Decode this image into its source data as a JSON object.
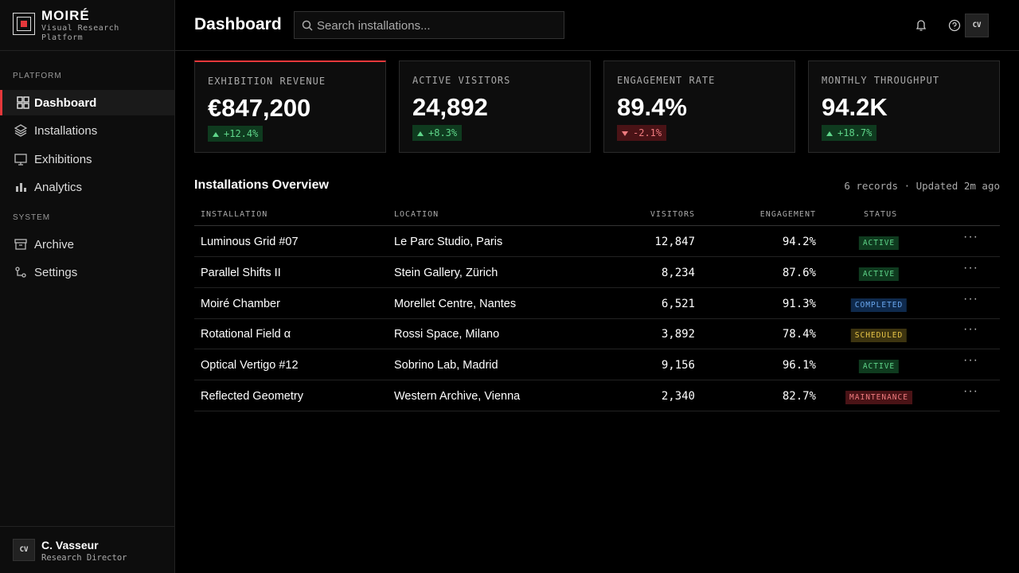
{
  "brand": {
    "name": "MOIRÉ",
    "tagline": "Visual Research Platform"
  },
  "nav": {
    "sections": [
      {
        "label": "PLATFORM",
        "items": [
          "Dashboard",
          "Installations",
          "Exhibitions",
          "Analytics"
        ]
      },
      {
        "label": "SYSTEM",
        "items": [
          "Archive",
          "Settings"
        ]
      }
    ]
  },
  "user": {
    "initials": "CV",
    "name": "C. Vasseur",
    "role": "Research Director"
  },
  "header": {
    "title": "Dashboard",
    "search_placeholder": "Search installations...",
    "avatar": "CV"
  },
  "kpis": [
    {
      "label": "EXHIBITION REVENUE",
      "value": "€847,200",
      "change": "+12.4%"
    },
    {
      "label": "ACTIVE VISITORS",
      "value": "24,892",
      "change": "+8.3%"
    },
    {
      "label": "ENGAGEMENT RATE",
      "value": "89.4%",
      "change": "-2.1%"
    },
    {
      "label": "MONTHLY THROUGHPUT",
      "value": "94.2K",
      "change": "+18.7%"
    }
  ],
  "table": {
    "title": "Installations Overview",
    "meta": "6 records · Updated 2m ago",
    "columns": [
      "INSTALLATION",
      "LOCATION",
      "VISITORS",
      "ENGAGEMENT",
      "STATUS"
    ],
    "rows": [
      [
        "Luminous Grid #07",
        "Le Parc Studio, Paris",
        "12,847",
        "94.2%",
        "ACTIVE"
      ],
      [
        "Parallel Shifts II",
        "Stein Gallery, Zürich",
        "8,234",
        "87.6%",
        "ACTIVE"
      ],
      [
        "Moiré Chamber",
        "Morellet Centre, Nantes",
        "6,521",
        "91.3%",
        "COMPLETED"
      ],
      [
        "Rotational Field α",
        "Rossi Space, Milano",
        "3,892",
        "78.4%",
        "SCHEDULED"
      ],
      [
        "Optical Vertigo #12",
        "Sobrino Lab, Madrid",
        "9,156",
        "96.1%",
        "ACTIVE"
      ],
      [
        "Reflected Geometry",
        "Western Archive, Vienna",
        "2,340",
        "82.7%",
        "MAINTENANCE"
      ]
    ]
  }
}
